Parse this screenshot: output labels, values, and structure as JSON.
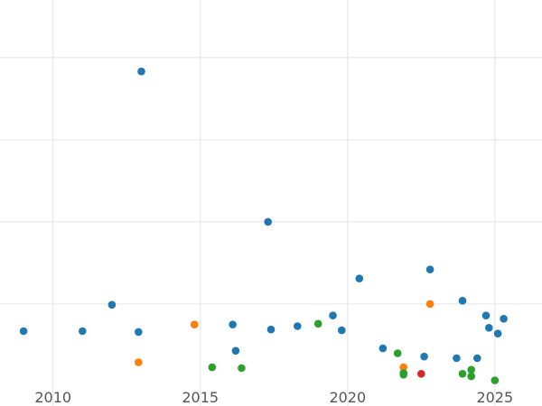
{
  "chart_data": {
    "type": "scatter",
    "title": "",
    "xlabel": "",
    "ylabel": "",
    "xlim": [
      2008.2,
      2026.6
    ],
    "ylim": [
      0.0,
      4.7
    ],
    "x_ticks": [
      2010,
      2015,
      2020,
      2025
    ],
    "x_tick_labels": [
      "2010",
      "2015",
      "2020",
      "2025"
    ],
    "y_gridlines": [
      1.0,
      2.0,
      3.0,
      4.0
    ],
    "grid": true,
    "legend": "none",
    "series": [
      {
        "color": "#1f77b4",
        "points": [
          [
            2009.0,
            0.67
          ],
          [
            2011.0,
            0.67
          ],
          [
            2012.0,
            0.99
          ],
          [
            2012.9,
            0.66
          ],
          [
            2013.0,
            3.83
          ],
          [
            2016.1,
            0.75
          ],
          [
            2016.2,
            0.43
          ],
          [
            2017.3,
            2.0
          ],
          [
            2017.4,
            0.69
          ],
          [
            2018.3,
            0.73
          ],
          [
            2019.5,
            0.86
          ],
          [
            2019.8,
            0.68
          ],
          [
            2020.4,
            1.31
          ],
          [
            2021.2,
            0.46
          ],
          [
            2022.6,
            0.36
          ],
          [
            2022.8,
            1.42
          ],
          [
            2023.7,
            0.34
          ],
          [
            2023.9,
            1.04
          ],
          [
            2024.4,
            0.34
          ],
          [
            2024.7,
            0.86
          ],
          [
            2024.8,
            0.71
          ],
          [
            2025.1,
            0.64
          ],
          [
            2025.3,
            0.82
          ]
        ]
      },
      {
        "color": "#ff7f0e",
        "points": [
          [
            2012.9,
            0.29
          ],
          [
            2014.8,
            0.75
          ],
          [
            2021.9,
            0.23
          ],
          [
            2022.8,
            1.0
          ]
        ]
      },
      {
        "color": "#2ca02c",
        "points": [
          [
            2015.4,
            0.23
          ],
          [
            2016.4,
            0.22
          ],
          [
            2019.0,
            0.76
          ],
          [
            2021.7,
            0.4
          ],
          [
            2021.9,
            0.16
          ],
          [
            2021.9,
            0.14
          ],
          [
            2023.9,
            0.15
          ],
          [
            2024.2,
            0.2
          ],
          [
            2024.2,
            0.12
          ],
          [
            2025.0,
            0.07
          ]
        ]
      },
      {
        "color": "#d62728",
        "points": [
          [
            2022.5,
            0.15
          ]
        ]
      }
    ]
  }
}
